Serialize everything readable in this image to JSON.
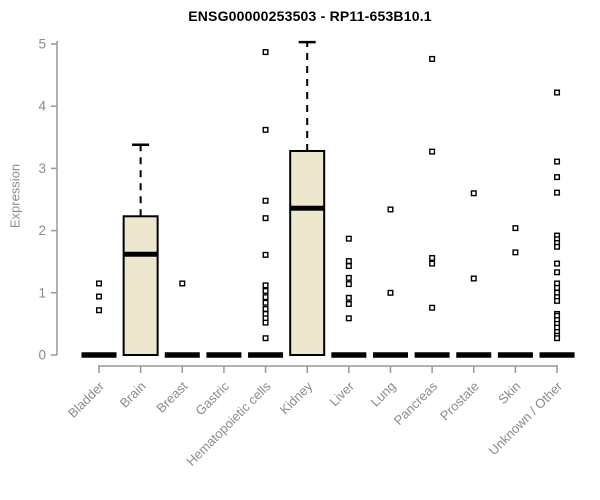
{
  "chart_data": {
    "type": "boxplot",
    "title": "ENSG00000253503 - RP11-653B10.1",
    "ylabel": "Expression",
    "xlabel": "",
    "ylim": [
      0,
      5
    ],
    "yticks": [
      0,
      1,
      2,
      3,
      4,
      5
    ],
    "grid": "off",
    "legend": "none",
    "colors": {
      "box_fill": "#EDE7CD",
      "box_border": "#000000",
      "median": "#000000",
      "outlier_stroke": "#000000",
      "outlier_fill": "#FFFFFF",
      "axis_line": "#999999",
      "axis_text": "#8C8C8C",
      "title_text": "#000000"
    },
    "categories": [
      {
        "label": "Bladder",
        "box": null,
        "outliers": [
          1.15,
          0.94,
          0.72
        ]
      },
      {
        "label": "Brain",
        "box": {
          "q1": 0,
          "median": 1.62,
          "q3": 2.23,
          "whisker_low": 0,
          "whisker_high": 3.38
        },
        "outliers": []
      },
      {
        "label": "Breast",
        "box": null,
        "outliers": [
          1.15
        ]
      },
      {
        "label": "Gastric",
        "box": null,
        "outliers": []
      },
      {
        "label": "Hematopoietic cells",
        "box": null,
        "outliers": [
          4.87,
          3.62,
          2.48,
          2.2,
          1.61,
          1.12,
          1.03,
          0.93,
          0.84,
          0.74,
          0.66,
          0.59,
          0.52,
          0.27
        ]
      },
      {
        "label": "Kidney",
        "box": {
          "q1": 0,
          "median": 2.36,
          "q3": 3.28,
          "whisker_low": 0,
          "whisker_high": 5.03
        },
        "outliers": []
      },
      {
        "label": "Liver",
        "box": null,
        "outliers": [
          1.87,
          1.51,
          1.43,
          1.24,
          1.14,
          0.92,
          0.82,
          0.59
        ]
      },
      {
        "label": "Lung",
        "box": null,
        "outliers": [
          2.34,
          1.0
        ]
      },
      {
        "label": "Pancreas",
        "box": null,
        "outliers": [
          4.76,
          3.27,
          1.56,
          1.47,
          0.76
        ]
      },
      {
        "label": "Prostate",
        "box": null,
        "outliers": [
          2.6,
          1.23
        ]
      },
      {
        "label": "Skin",
        "box": null,
        "outliers": [
          2.04,
          1.65
        ]
      },
      {
        "label": "Unknown / Other",
        "box": null,
        "outliers": [
          4.22,
          3.11,
          2.86,
          2.61,
          1.92,
          1.86,
          1.8,
          1.74,
          1.47,
          1.33,
          1.15,
          1.08,
          1.0,
          0.93,
          0.87,
          0.66,
          0.63,
          0.56,
          0.5,
          0.44,
          0.37,
          0.31,
          0.27
        ]
      }
    ],
    "zero_line_note": "categories with box=null are collapsed boxplots rendered as a thick black bar at 0"
  }
}
